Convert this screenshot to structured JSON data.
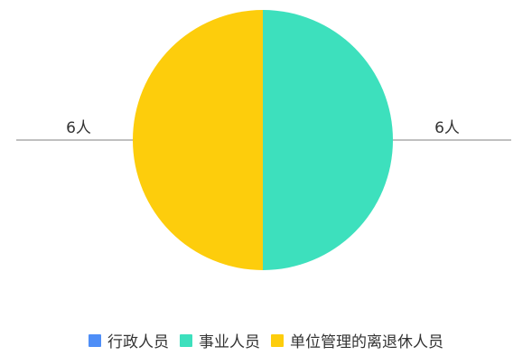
{
  "chart_data": {
    "type": "pie",
    "title": "",
    "unit": "人",
    "series": [
      {
        "name": "行政人员",
        "value": 0,
        "color": "#4e8ef7"
      },
      {
        "name": "事业人员",
        "value": 6,
        "color": "#3de0bd"
      },
      {
        "name": "单位管理的离退休人员",
        "value": 6,
        "color": "#fdcd0c"
      }
    ],
    "data_labels": [
      "",
      "6人",
      "6人"
    ],
    "legend": {
      "position": "bottom"
    }
  }
}
